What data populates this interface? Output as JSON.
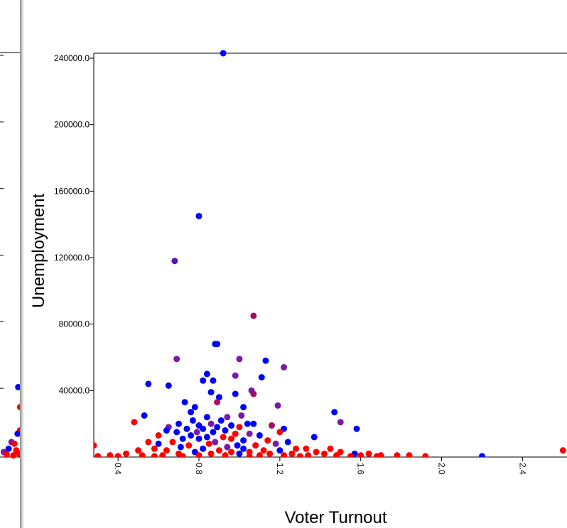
{
  "chart_data": {
    "type": "scatter",
    "xlabel": "Voter Turnout",
    "ylabel": "Unemployment",
    "xlim": [
      0.28,
      2.62
    ],
    "ylim": [
      0,
      243000
    ],
    "x_ticks": [
      "0.4",
      "0.8",
      "1.2",
      "1.6",
      "2.0",
      "2.4"
    ],
    "y_ticks": [
      "40000.0",
      "80000.0",
      "120000.0",
      "160000.0",
      "200000.0",
      "240000.0"
    ],
    "colors": {
      "blue": "#0000ff",
      "purple": "#7a1aa8",
      "red": "#ff0000"
    },
    "points": [
      {
        "x": 0.92,
        "y": 243000,
        "c": "#0000ff"
      },
      {
        "x": 0.8,
        "y": 145000,
        "c": "#0000ff"
      },
      {
        "x": 0.68,
        "y": 118000,
        "c": "#5a10c0"
      },
      {
        "x": 1.07,
        "y": 85000,
        "c": "#a01060"
      },
      {
        "x": 0.88,
        "y": 68000,
        "c": "#0000ff"
      },
      {
        "x": 0.89,
        "y": 68000,
        "c": "#0000ff"
      },
      {
        "x": 0.69,
        "y": 59000,
        "c": "#7a1aa8"
      },
      {
        "x": 1.0,
        "y": 59000,
        "c": "#7a1aa8"
      },
      {
        "x": 1.13,
        "y": 58000,
        "c": "#0000ff"
      },
      {
        "x": 1.22,
        "y": 54000,
        "c": "#7a1aa8"
      },
      {
        "x": 0.84,
        "y": 50000,
        "c": "#0000ff"
      },
      {
        "x": 0.98,
        "y": 49000,
        "c": "#7a1aa8"
      },
      {
        "x": 0.82,
        "y": 46000,
        "c": "#0000ff"
      },
      {
        "x": 0.87,
        "y": 46000,
        "c": "#0000ff"
      },
      {
        "x": 1.11,
        "y": 48000,
        "c": "#0000ff"
      },
      {
        "x": 0.55,
        "y": 44000,
        "c": "#0000ff"
      },
      {
        "x": 0.65,
        "y": 43000,
        "c": "#0000ff"
      },
      {
        "x": 1.06,
        "y": 40000,
        "c": "#7a1aa8"
      },
      {
        "x": 0.86,
        "y": 39000,
        "c": "#0000ff"
      },
      {
        "x": 0.98,
        "y": 38000,
        "c": "#0000ff"
      },
      {
        "x": 0.9,
        "y": 36000,
        "c": "#0000ff"
      },
      {
        "x": 1.07,
        "y": 38000,
        "c": "#a01060"
      },
      {
        "x": 0.73,
        "y": 33000,
        "c": "#0000ff"
      },
      {
        "x": 0.89,
        "y": 33000,
        "c": "#b01050"
      },
      {
        "x": 1.02,
        "y": 30000,
        "c": "#0000ff"
      },
      {
        "x": 1.19,
        "y": 31000,
        "c": "#7a1aa8"
      },
      {
        "x": 0.78,
        "y": 30000,
        "c": "#0000ff"
      },
      {
        "x": 0.76,
        "y": 27000,
        "c": "#0000ff"
      },
      {
        "x": 1.47,
        "y": 27000,
        "c": "#0000ff"
      },
      {
        "x": 0.53,
        "y": 25000,
        "c": "#0000ff"
      },
      {
        "x": 0.84,
        "y": 24000,
        "c": "#0000ff"
      },
      {
        "x": 0.94,
        "y": 24000,
        "c": "#7a1aa8"
      },
      {
        "x": 1.01,
        "y": 25000,
        "c": "#7a1aa8"
      },
      {
        "x": 0.77,
        "y": 22000,
        "c": "#0000ff"
      },
      {
        "x": 0.91,
        "y": 22000,
        "c": "#0000ff"
      },
      {
        "x": 0.48,
        "y": 21000,
        "c": "#ff0000"
      },
      {
        "x": 1.5,
        "y": 21000,
        "c": "#7a1aa8"
      },
      {
        "x": 1.04,
        "y": 20000,
        "c": "#0000ff"
      },
      {
        "x": 0.7,
        "y": 20000,
        "c": "#0000ff"
      },
      {
        "x": 0.86,
        "y": 20000,
        "c": "#7a1aa8"
      },
      {
        "x": 1.07,
        "y": 20000,
        "c": "#0000ff"
      },
      {
        "x": 0.8,
        "y": 19000,
        "c": "#0000ff"
      },
      {
        "x": 0.96,
        "y": 19000,
        "c": "#0000ff"
      },
      {
        "x": 1.16,
        "y": 19000,
        "c": "#a01060"
      },
      {
        "x": 0.65,
        "y": 18000,
        "c": "#7a1aa8"
      },
      {
        "x": 0.89,
        "y": 18000,
        "c": "#0000ff"
      },
      {
        "x": 1.0,
        "y": 18000,
        "c": "#ff0000"
      },
      {
        "x": 0.74,
        "y": 17000,
        "c": "#0000ff"
      },
      {
        "x": 0.82,
        "y": 17000,
        "c": "#0000ff"
      },
      {
        "x": 1.22,
        "y": 17000,
        "c": "#0000ff"
      },
      {
        "x": 1.58,
        "y": 17000,
        "c": "#0000ff"
      },
      {
        "x": 0.64,
        "y": 16000,
        "c": "#0000ff"
      },
      {
        "x": 0.93,
        "y": 16000,
        "c": "#0000ff"
      },
      {
        "x": 1.2,
        "y": 15000,
        "c": "#ff0000"
      },
      {
        "x": 0.69,
        "y": 15000,
        "c": "#0000ff"
      },
      {
        "x": 0.79,
        "y": 15000,
        "c": "#7a1aa8"
      },
      {
        "x": 0.87,
        "y": 15000,
        "c": "#0000ff"
      },
      {
        "x": 0.98,
        "y": 14000,
        "c": "#ff0000"
      },
      {
        "x": 1.05,
        "y": 14000,
        "c": "#7a1aa8"
      },
      {
        "x": 1.1,
        "y": 13000,
        "c": "#0000ff"
      },
      {
        "x": 0.6,
        "y": 13000,
        "c": "#ff0000"
      },
      {
        "x": 0.76,
        "y": 13000,
        "c": "#0000ff"
      },
      {
        "x": 0.84,
        "y": 12000,
        "c": "#0000ff"
      },
      {
        "x": 0.92,
        "y": 12000,
        "c": "#ff0000"
      },
      {
        "x": 1.37,
        "y": 12000,
        "c": "#0000ff"
      },
      {
        "x": 0.72,
        "y": 11000,
        "c": "#0000ff"
      },
      {
        "x": 0.8,
        "y": 11000,
        "c": "#0000ff"
      },
      {
        "x": 0.96,
        "y": 11000,
        "c": "#ff0000"
      },
      {
        "x": 1.02,
        "y": 10000,
        "c": "#0000ff"
      },
      {
        "x": 1.14,
        "y": 10000,
        "c": "#ff0000"
      },
      {
        "x": 1.24,
        "y": 9000,
        "c": "#0000ff"
      },
      {
        "x": 0.55,
        "y": 9000,
        "c": "#ff0000"
      },
      {
        "x": 0.67,
        "y": 9000,
        "c": "#ff0000"
      },
      {
        "x": 0.88,
        "y": 9000,
        "c": "#7a1aa8"
      },
      {
        "x": 0.6,
        "y": 8000,
        "c": "#0000ff"
      },
      {
        "x": 1.18,
        "y": 8000,
        "c": "#7a1aa8"
      },
      {
        "x": 0.85,
        "y": 8000,
        "c": "#ff0000"
      },
      {
        "x": 0.99,
        "y": 7000,
        "c": "#0000ff"
      },
      {
        "x": 1.08,
        "y": 7000,
        "c": "#ff0000"
      },
      {
        "x": 0.75,
        "y": 7000,
        "c": "#ff0000"
      },
      {
        "x": 0.71,
        "y": 6000,
        "c": "#0000ff"
      },
      {
        "x": 0.94,
        "y": 6000,
        "c": "#7a1aa8"
      },
      {
        "x": 1.02,
        "y": 5000,
        "c": "#0000ff"
      },
      {
        "x": 1.28,
        "y": 5000,
        "c": "#ff0000"
      },
      {
        "x": 1.33,
        "y": 5000,
        "c": "#ff0000"
      },
      {
        "x": 1.45,
        "y": 5000,
        "c": "#ff0000"
      },
      {
        "x": 0.58,
        "y": 5000,
        "c": "#ff0000"
      },
      {
        "x": 0.82,
        "y": 5000,
        "c": "#0000ff"
      },
      {
        "x": 0.9,
        "y": 4000,
        "c": "#ff0000"
      },
      {
        "x": 1.12,
        "y": 4000,
        "c": "#ff0000"
      },
      {
        "x": 1.2,
        "y": 4000,
        "c": "#0000ff"
      },
      {
        "x": 0.5,
        "y": 4000,
        "c": "#ff0000"
      },
      {
        "x": 0.64,
        "y": 4000,
        "c": "#ff0000"
      },
      {
        "x": 0.78,
        "y": 3000,
        "c": "#0000ff"
      },
      {
        "x": 0.96,
        "y": 3000,
        "c": "#ff0000"
      },
      {
        "x": 1.05,
        "y": 3000,
        "c": "#ff0000"
      },
      {
        "x": 1.38,
        "y": 3000,
        "c": "#ff0000"
      },
      {
        "x": 1.5,
        "y": 3000,
        "c": "#ff0000"
      },
      {
        "x": 0.28,
        "y": 7000,
        "c": "#ff0000"
      },
      {
        "x": 0.44,
        "y": 2000,
        "c": "#ff0000"
      },
      {
        "x": 0.7,
        "y": 2000,
        "c": "#ff0000"
      },
      {
        "x": 0.86,
        "y": 2000,
        "c": "#ff0000"
      },
      {
        "x": 1.0,
        "y": 2000,
        "c": "#0000ff"
      },
      {
        "x": 1.15,
        "y": 2000,
        "c": "#ff0000"
      },
      {
        "x": 1.26,
        "y": 2000,
        "c": "#ff0000"
      },
      {
        "x": 1.42,
        "y": 2000,
        "c": "#ff0000"
      },
      {
        "x": 1.57,
        "y": 2000,
        "c": "#0000ff"
      },
      {
        "x": 1.64,
        "y": 2000,
        "c": "#ff0000"
      },
      {
        "x": 0.36,
        "y": 1000,
        "c": "#ff0000"
      },
      {
        "x": 0.52,
        "y": 1000,
        "c": "#ff0000"
      },
      {
        "x": 0.62,
        "y": 1000,
        "c": "#ff0000"
      },
      {
        "x": 0.8,
        "y": 1000,
        "c": "#ff0000"
      },
      {
        "x": 0.93,
        "y": 1000,
        "c": "#ff0000"
      },
      {
        "x": 1.1,
        "y": 1000,
        "c": "#ff0000"
      },
      {
        "x": 1.22,
        "y": 1000,
        "c": "#ff0000"
      },
      {
        "x": 1.34,
        "y": 1000,
        "c": "#ff0000"
      },
      {
        "x": 1.48,
        "y": 1000,
        "c": "#ff0000"
      },
      {
        "x": 1.6,
        "y": 1000,
        "c": "#ff0000"
      },
      {
        "x": 1.7,
        "y": 1000,
        "c": "#ff0000"
      },
      {
        "x": 1.78,
        "y": 1000,
        "c": "#ff0000"
      },
      {
        "x": 1.84,
        "y": 1000,
        "c": "#ff0000"
      },
      {
        "x": 0.3,
        "y": 500,
        "c": "#ff0000"
      },
      {
        "x": 0.4,
        "y": 500,
        "c": "#ff0000"
      },
      {
        "x": 0.58,
        "y": 500,
        "c": "#ff0000"
      },
      {
        "x": 0.72,
        "y": 500,
        "c": "#ff0000"
      },
      {
        "x": 1.05,
        "y": 500,
        "c": "#ff0000"
      },
      {
        "x": 1.3,
        "y": 500,
        "c": "#ff0000"
      },
      {
        "x": 1.55,
        "y": 500,
        "c": "#ff0000"
      },
      {
        "x": 1.68,
        "y": 500,
        "c": "#ff0000"
      },
      {
        "x": 1.92,
        "y": 500,
        "c": "#ff0000"
      },
      {
        "x": 2.2,
        "y": 500,
        "c": "#0000ff"
      },
      {
        "x": 2.6,
        "y": 4000,
        "c": "#ff0000"
      }
    ]
  },
  "left_panel": {
    "points": [
      {
        "x": 0.95,
        "y": 42000,
        "c": "#0000ff"
      },
      {
        "x": 1.05,
        "y": 30000,
        "c": "#ff0000"
      },
      {
        "x": 1.04,
        "y": 16000,
        "c": "#ff0000"
      },
      {
        "x": 0.92,
        "y": 14000,
        "c": "#0000ff"
      },
      {
        "x": 0.6,
        "y": 9000,
        "c": "#7a1aa8"
      },
      {
        "x": 0.75,
        "y": 8000,
        "c": "#ff0000"
      },
      {
        "x": 0.45,
        "y": 5000,
        "c": "#0000ff"
      },
      {
        "x": 0.85,
        "y": 4000,
        "c": "#ff0000"
      },
      {
        "x": 0.2,
        "y": 3000,
        "c": "#7a1aa8"
      },
      {
        "x": 1.0,
        "y": 2000,
        "c": "#ff0000"
      },
      {
        "x": 0.35,
        "y": 1500,
        "c": "#ff0000"
      },
      {
        "x": 0.7,
        "y": 1000,
        "c": "#ff0000"
      }
    ]
  }
}
